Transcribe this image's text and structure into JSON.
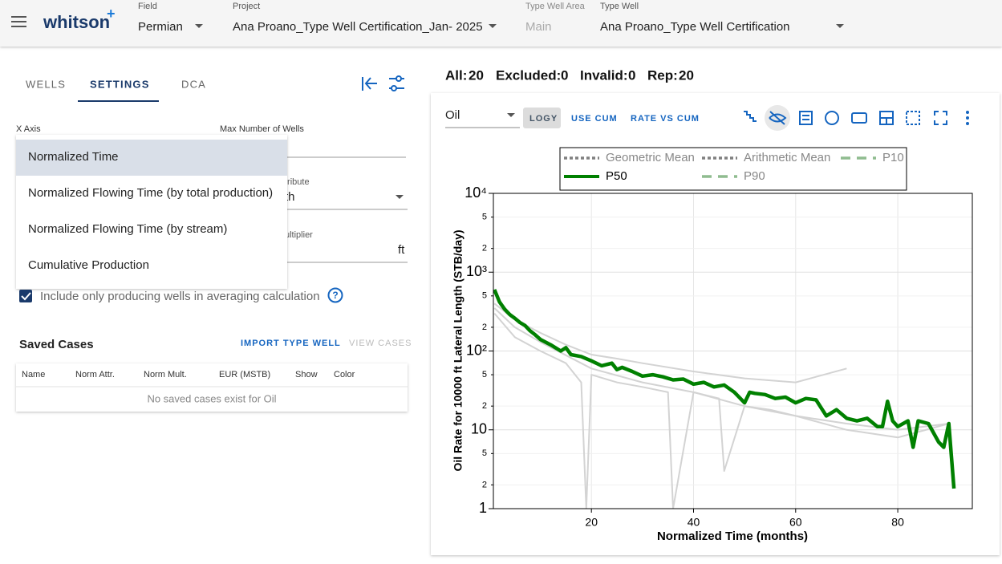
{
  "header": {
    "logo": "whitson",
    "logo_mark": "+",
    "fields": [
      {
        "label": "Field",
        "value": "Permian"
      },
      {
        "label": "Project",
        "value": "Ana Proano_Type Well Certification_Jan- 2025"
      },
      {
        "label": "Type Well Area",
        "value": "Main"
      },
      {
        "label": "Type Well",
        "value": "Ana Proano_Type Well Certification"
      }
    ]
  },
  "tabs": [
    "WELLS",
    "SETTINGS",
    "DCA"
  ],
  "settings": {
    "x_axis_label": "X Axis",
    "max_wells_label": "Max Number of Wells",
    "menu": [
      "Normalized Time",
      "Normalized Flowing Time (by total production)",
      "Normalized Flowing Time (by stream)",
      "Cumulative Production"
    ],
    "hidden_fragments": [
      "tribute",
      "th",
      "ultiplier",
      "ft"
    ],
    "checkbox": "Include only producing wells in averaging calculation"
  },
  "saved_cases": {
    "title": "Saved Cases",
    "import": "IMPORT TYPE WELL",
    "view": "VIEW CASES",
    "columns": [
      "Name",
      "Norm Attr.",
      "Norm Mult.",
      "EUR (MSTB)",
      "Show",
      "Color"
    ],
    "empty": "No saved cases exist for Oil"
  },
  "stats": [
    {
      "label": "All:",
      "value": 20
    },
    {
      "label": "Excluded:",
      "value": 0
    },
    {
      "label": "Invalid:",
      "value": 0
    },
    {
      "label": "Rep:",
      "value": 20
    }
  ],
  "toolbar": {
    "stream": "Oil",
    "buttons": [
      "LOGY",
      "USE CUM",
      "RATE VS CUM"
    ]
  },
  "chart_data": {
    "type": "line",
    "x_label": "Normalized Time (months)",
    "y_label": "Oil Rate for 10000 ft Lateral Length (STB/day)",
    "log_y": true,
    "grid": true,
    "xlim": [
      0.8,
      94.6
    ],
    "xticks": [
      20,
      40,
      60,
      80
    ],
    "ylim": [
      1,
      10000
    ],
    "yticks": [
      1,
      2,
      5,
      10,
      {
        "value": 20,
        "label": "2"
      },
      {
        "value": 50,
        "label": "5"
      },
      {
        "value": 100,
        "label": "10²"
      },
      {
        "value": 200,
        "label": "2"
      },
      {
        "value": 500,
        "label": "5"
      },
      {
        "value": 1000,
        "label": "10³"
      },
      {
        "value": 2000,
        "label": "2"
      },
      {
        "value": 5000,
        "label": "5"
      },
      {
        "value": 10000,
        "label": "10⁴"
      }
    ],
    "legend": [
      {
        "name": "Geometric Mean",
        "color": "#808080",
        "style": "dotted"
      },
      {
        "name": "Arithmetic Mean",
        "color": "#808080",
        "style": "dotted"
      },
      {
        "name": "P10",
        "color": "#8fbc8f",
        "style": "dashed"
      },
      {
        "name": "P90",
        "color": "#8fbc8f",
        "style": "dashed"
      }
    ],
    "series": [
      {
        "name": "P50",
        "color": "#008000",
        "x": [
          1,
          2,
          3,
          4,
          5,
          6,
          7,
          8,
          9,
          10,
          12,
          14,
          15,
          16,
          18,
          20,
          22,
          24,
          25,
          26,
          28,
          30,
          32,
          34,
          36,
          38,
          40,
          42,
          44,
          46,
          48,
          50,
          51,
          52,
          54,
          56,
          58,
          60,
          62,
          64,
          66,
          68,
          70,
          72,
          74,
          76,
          77,
          78,
          79,
          80,
          82,
          83,
          84,
          86,
          88,
          89,
          90,
          91
        ],
        "values": [
          600,
          420,
          340,
          290,
          260,
          230,
          210,
          180,
          160,
          140,
          120,
          100,
          110,
          90,
          85,
          75,
          65,
          70,
          58,
          62,
          55,
          48,
          50,
          47,
          43,
          44,
          38,
          40,
          35,
          37,
          30,
          22,
          30,
          29,
          28,
          25,
          26,
          22,
          25,
          24,
          15,
          18,
          14,
          13,
          14,
          11,
          11,
          23,
          13,
          11,
          13,
          6,
          13,
          12,
          7,
          6,
          12,
          1.8
        ]
      }
    ],
    "wells": [
      {
        "color": "#d3d3d3",
        "x": [
          1,
          5,
          10,
          15,
          20,
          25,
          30,
          40,
          50,
          60,
          70
        ],
        "values": [
          400,
          250,
          170,
          120,
          90,
          80,
          70,
          55,
          45,
          40,
          60
        ]
      },
      {
        "color": "#d3d3d3",
        "x": [
          1,
          5,
          10,
          15,
          18,
          19,
          20,
          25,
          30,
          35,
          36,
          40,
          50,
          60,
          70,
          80,
          90
        ],
        "values": [
          300,
          150,
          100,
          70,
          40,
          1,
          50,
          40,
          35,
          30,
          1,
          30,
          20,
          15,
          12,
          10,
          12
        ]
      },
      {
        "color": "#d3d3d3",
        "x": [
          1,
          5,
          10,
          20,
          30,
          40,
          45,
          46,
          50,
          55,
          60,
          70,
          80,
          90
        ],
        "values": [
          350,
          200,
          130,
          60,
          40,
          30,
          25,
          3,
          20,
          18,
          15,
          10,
          8,
          12
        ]
      }
    ]
  }
}
